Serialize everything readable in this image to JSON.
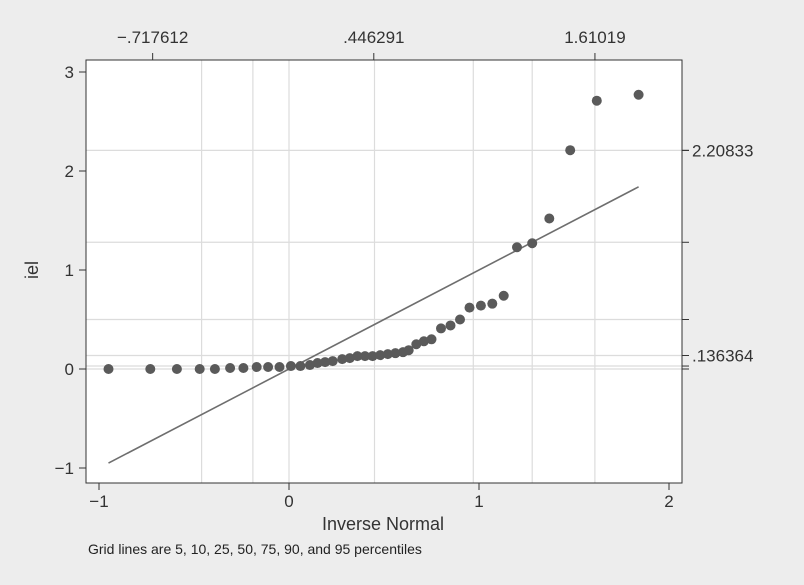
{
  "chart_data": {
    "type": "scatter",
    "title": "",
    "xlabel": "Inverse Normal",
    "ylabel": "iel",
    "xlim": [
      -1.0,
      2.0
    ],
    "ylim": [
      -1.0,
      3.0
    ],
    "x_ticks": [
      -1,
      0,
      1,
      2
    ],
    "x_tick_labels": [
      "−1",
      "0",
      "1",
      "2"
    ],
    "y_ticks": [
      -1,
      0,
      1,
      2,
      3
    ],
    "y_tick_labels": [
      "−1",
      "0",
      "1",
      "2",
      "3"
    ],
    "top_axis": {
      "ticks": [
        -0.717612,
        0.446291,
        1.61019
      ],
      "tick_labels": [
        "−.717612",
        ".446291",
        "1.61019"
      ]
    },
    "right_axis": {
      "ticks": [
        2.20833,
        0.136364
      ],
      "tick_labels": [
        "2.20833",
        ".136364"
      ]
    },
    "vertical_grid": [
      -0.46,
      -0.19,
      0.0,
      0.45,
      0.97,
      1.28,
      1.61
    ],
    "horizontal_grid": [
      2.20833,
      1.28,
      0.5,
      0.136364,
      0.03,
      0.0
    ],
    "reference_line": {
      "x": [
        -0.95,
        1.84
      ],
      "y": [
        -0.95,
        1.84
      ]
    },
    "series": [
      {
        "name": "iel",
        "points": [
          [
            -0.95,
            0.0
          ],
          [
            -0.73,
            0.0
          ],
          [
            -0.59,
            0.0
          ],
          [
            -0.47,
            0.0
          ],
          [
            -0.39,
            0.0
          ],
          [
            -0.31,
            0.01
          ],
          [
            -0.24,
            0.01
          ],
          [
            -0.17,
            0.02
          ],
          [
            -0.11,
            0.02
          ],
          [
            -0.05,
            0.02
          ],
          [
            0.01,
            0.03
          ],
          [
            0.06,
            0.03
          ],
          [
            0.11,
            0.04
          ],
          [
            0.15,
            0.06
          ],
          [
            0.19,
            0.07
          ],
          [
            0.23,
            0.08
          ],
          [
            0.28,
            0.1
          ],
          [
            0.32,
            0.11
          ],
          [
            0.36,
            0.13
          ],
          [
            0.4,
            0.13
          ],
          [
            0.44,
            0.13
          ],
          [
            0.48,
            0.14
          ],
          [
            0.52,
            0.15
          ],
          [
            0.56,
            0.16
          ],
          [
            0.6,
            0.17
          ],
          [
            0.63,
            0.19
          ],
          [
            0.67,
            0.25
          ],
          [
            0.71,
            0.28
          ],
          [
            0.75,
            0.3
          ],
          [
            0.8,
            0.41
          ],
          [
            0.85,
            0.44
          ],
          [
            0.9,
            0.5
          ],
          [
            0.95,
            0.62
          ],
          [
            1.01,
            0.64
          ],
          [
            1.07,
            0.66
          ],
          [
            1.13,
            0.74
          ],
          [
            1.2,
            1.23
          ],
          [
            1.28,
            1.27
          ],
          [
            1.37,
            1.52
          ],
          [
            1.48,
            2.21
          ],
          [
            1.62,
            2.71
          ],
          [
            1.84,
            2.77
          ]
        ]
      }
    ],
    "note": "Grid lines are 5, 10, 25, 50, 75, 90, and 95 percentiles",
    "colors": {
      "background": "#ededed",
      "plot_background": "#ffffff",
      "grid": "#dcdcdc",
      "marker": "#5a5a5a",
      "line": "#6e6e6e",
      "axis": "#333333"
    }
  }
}
